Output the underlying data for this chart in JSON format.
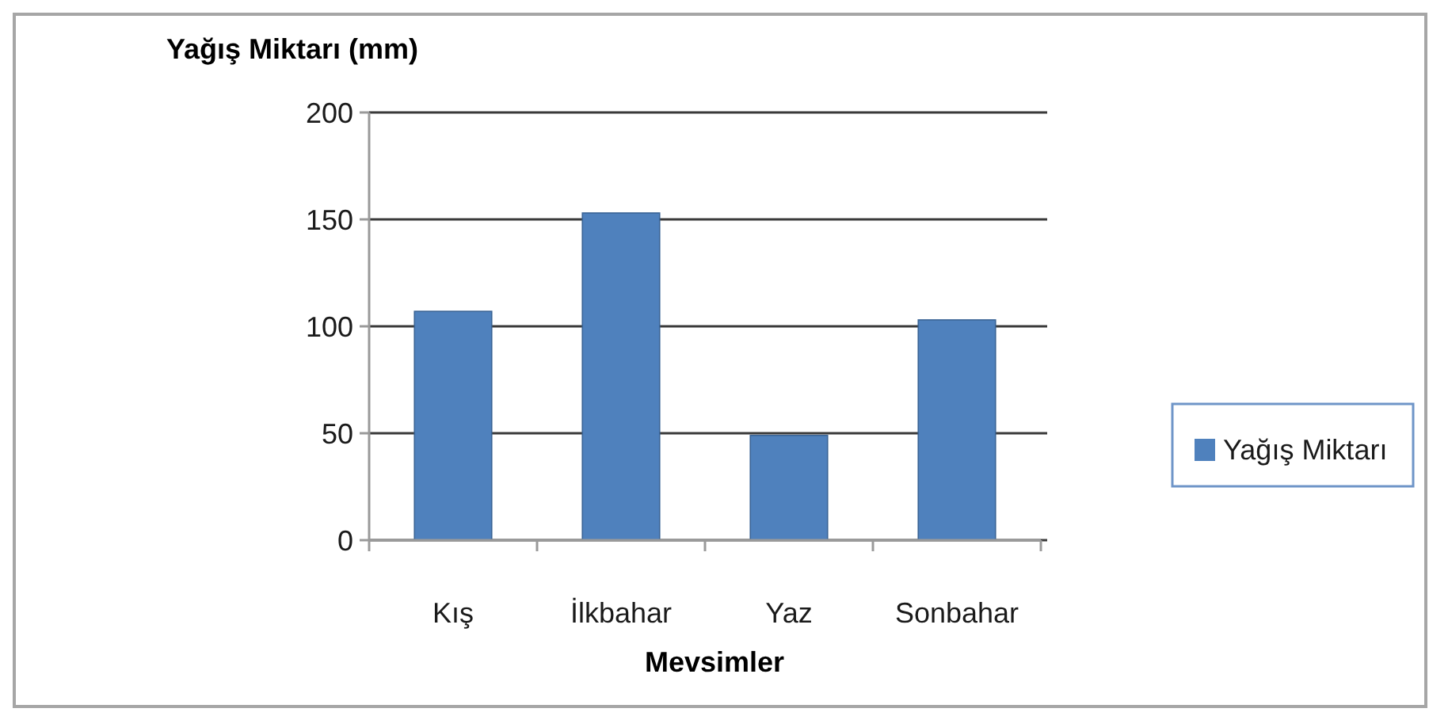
{
  "chart_data": {
    "type": "bar",
    "ylabel": "Yağış Miktarı (mm)",
    "xlabel": "Mevsimler",
    "categories": [
      "Kış",
      "İlkbahar",
      "Yaz",
      "Sonbahar"
    ],
    "series": [
      {
        "name": "Yağış Miktarı",
        "color": "#4f81bd",
        "values": [
          107,
          153,
          49,
          103
        ]
      }
    ],
    "ylim": [
      0,
      200
    ],
    "yticks": [
      0,
      50,
      100,
      150,
      200
    ],
    "grid": "y",
    "legend": "right"
  }
}
